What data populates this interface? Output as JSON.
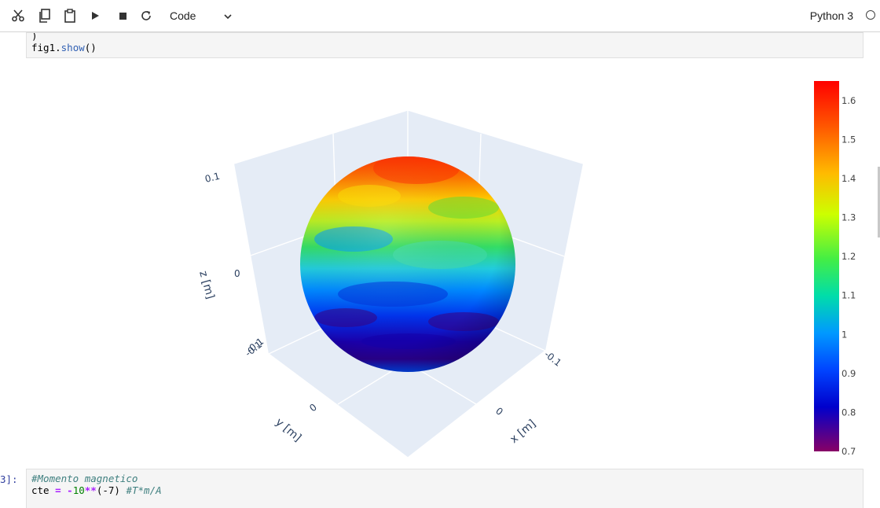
{
  "toolbar": {
    "buttons": [
      "cut-icon",
      "copy-icon",
      "paste-icon",
      "run-icon",
      "stop-icon",
      "restart-icon"
    ],
    "cell_type": "Code",
    "kernel_name": "Python 3"
  },
  "cells": {
    "cell1": {
      "fragment": ")",
      "code_obj": "fig1",
      "code_dot": ".",
      "code_fn": "show",
      "code_parens": "()"
    },
    "cell2": {
      "prompt": "3]:",
      "comment": "#Momento magnetico",
      "line2_var": "cte ",
      "line2_eq": "=",
      "line2_sp": " ",
      "line2_minus": "-",
      "line2_ten": "10",
      "line2_pow": "**",
      "line2_exp": "(-7)",
      "line2_sp2": " ",
      "line2_comment": "#T*m/A"
    }
  },
  "chart_data": {
    "type": "surface3d",
    "description_colormap": "jet",
    "axes": {
      "x": {
        "title": "x [m]",
        "ticks": [
          "-0.1",
          "0"
        ]
      },
      "y": {
        "title": "y [m]",
        "ticks": [
          "-0.1",
          "0"
        ]
      },
      "z": {
        "title": "z [m]",
        "ticks": [
          "0.1",
          "0",
          "-0.1"
        ]
      }
    },
    "colorbar": {
      "range": [
        0.7,
        1.65
      ],
      "ticks": [
        "1.6",
        "1.5",
        "1.4",
        "1.3",
        "1.2",
        "1.1",
        "1",
        "0.9",
        "0.8",
        "0.7"
      ],
      "tick_values": [
        1.6,
        1.5,
        1.4,
        1.3,
        1.2,
        1.1,
        1.0,
        0.9,
        0.8,
        0.7
      ]
    },
    "colors": {
      "top": "#ff3300",
      "upper": "#ffcc00",
      "middle": "#33dd66",
      "lower": "#0055ff",
      "bottom": "#1a00aa",
      "scene_bg": "#e5ecf6"
    }
  }
}
